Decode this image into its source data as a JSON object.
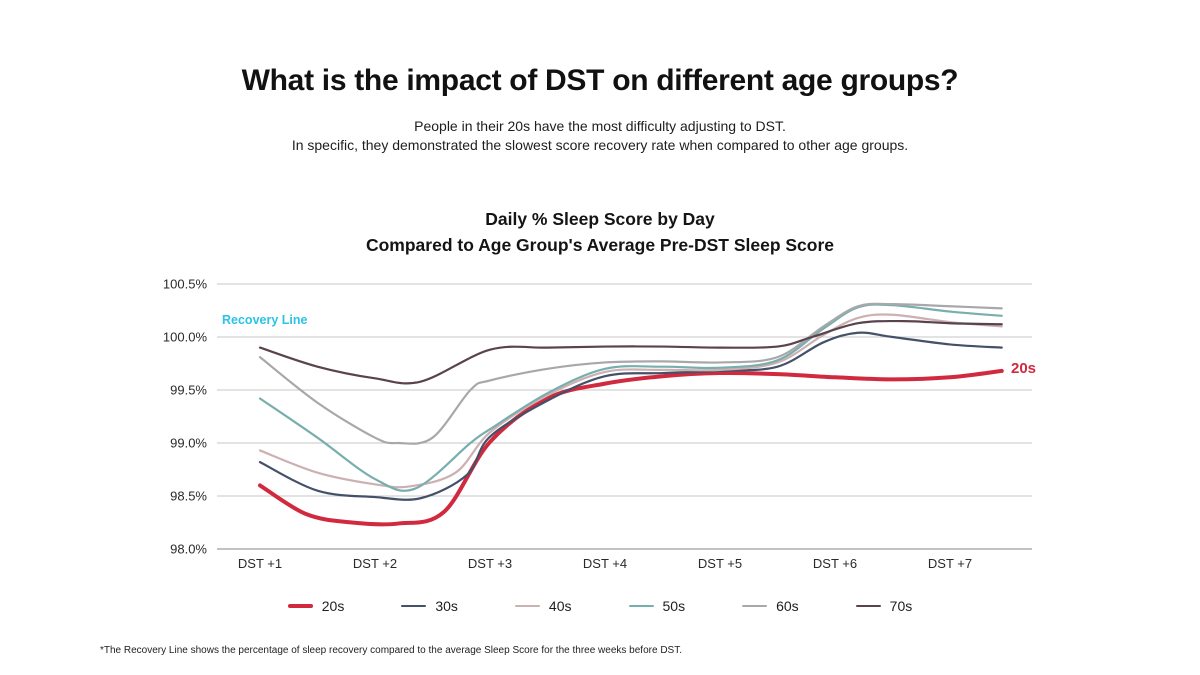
{
  "header": {
    "title": "What is the impact of DST on different age groups?",
    "subtitle_line1": "People in their 20s have the most difficulty adjusting to DST.",
    "subtitle_line2": "In specific, they demonstrated the slowest score recovery rate when compared to other age groups."
  },
  "chart": {
    "title_line1": "Daily % Sleep Score by Day",
    "title_line2": "Compared to Age Group's Average Pre-DST Sleep Score"
  },
  "footnote": "*The Recovery Line shows the percentage of sleep recovery compared to the average Sleep Score for the three weeks before DST.",
  "chart_data": {
    "type": "line",
    "title": "Daily % Sleep Score by Day Compared to Age Group's Average Pre-DST Sleep Score",
    "x_categories": [
      "DST +1",
      "DST +2",
      "DST +3",
      "DST +4",
      "DST +5",
      "DST +6",
      "DST +7"
    ],
    "y_ticks": [
      {
        "label": "100.5%",
        "value": 100.5
      },
      {
        "label": "100.0%",
        "value": 100.0
      },
      {
        "label": "99.5%",
        "value": 99.5
      },
      {
        "label": "99.0%",
        "value": 99.0
      },
      {
        "label": "98.5%",
        "value": 98.5
      },
      {
        "label": "98.0%",
        "value": 98.0
      }
    ],
    "ylim": [
      97.9,
      100.75
    ],
    "grid": true,
    "legend_position": "bottom",
    "grid_color": "#c7c7c7",
    "axis_color": "#9e9e9e",
    "recovery_line": {
      "label": "Recovery Line",
      "value": 100.0,
      "color_left": "#2bc3e6",
      "color_right": "#3ed492"
    },
    "series": [
      {
        "name": "20s",
        "color": "#d1293e",
        "thickness": 4,
        "end_label": "20s",
        "points": [
          [
            1,
            98.6
          ],
          [
            1.4,
            98.33
          ],
          [
            1.8,
            98.25
          ],
          [
            2.2,
            98.24
          ],
          [
            2.6,
            98.35
          ],
          [
            3,
            99.01
          ],
          [
            3.5,
            99.42
          ],
          [
            4,
            99.56
          ],
          [
            4.5,
            99.63
          ],
          [
            5,
            99.66
          ],
          [
            5.5,
            99.65
          ],
          [
            6,
            99.62
          ],
          [
            6.5,
            99.6
          ],
          [
            7,
            99.62
          ],
          [
            7.45,
            99.68
          ]
        ]
      },
      {
        "name": "30s",
        "color": "#445169",
        "thickness": 2.2,
        "points": [
          [
            1,
            98.82
          ],
          [
            1.5,
            98.55
          ],
          [
            2,
            98.49
          ],
          [
            2.4,
            98.48
          ],
          [
            2.8,
            98.7
          ],
          [
            3,
            99.06
          ],
          [
            3.5,
            99.4
          ],
          [
            4,
            99.63
          ],
          [
            4.5,
            99.66
          ],
          [
            5,
            99.68
          ],
          [
            5.5,
            99.72
          ],
          [
            5.9,
            99.95
          ],
          [
            6.2,
            100.04
          ],
          [
            6.5,
            100.0
          ],
          [
            7,
            99.93
          ],
          [
            7.45,
            99.9
          ]
        ]
      },
      {
        "name": "40s",
        "color": "#ccb0b2",
        "thickness": 2.2,
        "points": [
          [
            1,
            98.93
          ],
          [
            1.5,
            98.72
          ],
          [
            2,
            98.61
          ],
          [
            2.3,
            98.59
          ],
          [
            2.7,
            98.72
          ],
          [
            3,
            99.1
          ],
          [
            3.5,
            99.45
          ],
          [
            4,
            99.67
          ],
          [
            4.5,
            99.69
          ],
          [
            5,
            99.69
          ],
          [
            5.5,
            99.76
          ],
          [
            5.9,
            100.02
          ],
          [
            6.2,
            100.18
          ],
          [
            6.5,
            100.21
          ],
          [
            7,
            100.14
          ],
          [
            7.45,
            100.1
          ]
        ]
      },
      {
        "name": "50s",
        "color": "#79aeae",
        "thickness": 2.2,
        "points": [
          [
            1,
            99.42
          ],
          [
            1.5,
            99.05
          ],
          [
            2,
            98.66
          ],
          [
            2.35,
            98.57
          ],
          [
            2.83,
            99.0
          ],
          [
            3,
            99.13
          ],
          [
            3.5,
            99.47
          ],
          [
            4,
            99.7
          ],
          [
            4.5,
            99.72
          ],
          [
            5,
            99.71
          ],
          [
            5.5,
            99.78
          ],
          [
            5.9,
            100.08
          ],
          [
            6.2,
            100.28
          ],
          [
            6.5,
            100.3
          ],
          [
            7,
            100.24
          ],
          [
            7.45,
            100.2
          ]
        ]
      },
      {
        "name": "60s",
        "color": "#a8a8aa",
        "thickness": 2.2,
        "points": [
          [
            1,
            99.81
          ],
          [
            1.5,
            99.38
          ],
          [
            2,
            99.05
          ],
          [
            2.2,
            99.0
          ],
          [
            2.5,
            99.05
          ],
          [
            2.83,
            99.5
          ],
          [
            3,
            99.59
          ],
          [
            3.5,
            99.7
          ],
          [
            4,
            99.76
          ],
          [
            4.5,
            99.77
          ],
          [
            5,
            99.76
          ],
          [
            5.5,
            99.81
          ],
          [
            5.9,
            100.1
          ],
          [
            6.2,
            100.29
          ],
          [
            6.5,
            100.31
          ],
          [
            7,
            100.29
          ],
          [
            7.45,
            100.27
          ]
        ]
      },
      {
        "name": "70s",
        "color": "#5a434c",
        "thickness": 2.2,
        "points": [
          [
            1,
            99.9
          ],
          [
            1.5,
            99.72
          ],
          [
            2,
            99.61
          ],
          [
            2.4,
            99.58
          ],
          [
            3,
            99.88
          ],
          [
            3.5,
            99.9
          ],
          [
            4,
            99.91
          ],
          [
            4.5,
            99.91
          ],
          [
            5,
            99.9
          ],
          [
            5.5,
            99.91
          ],
          [
            5.8,
            100.0
          ],
          [
            6.2,
            100.13
          ],
          [
            6.6,
            100.15
          ],
          [
            7,
            100.13
          ],
          [
            7.45,
            100.12
          ]
        ]
      }
    ]
  }
}
